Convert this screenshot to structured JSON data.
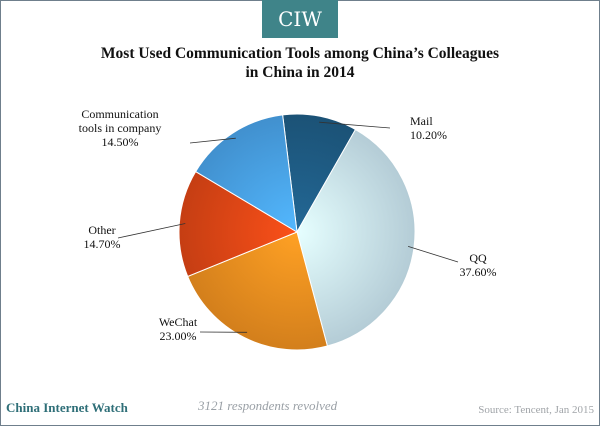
{
  "brand": {
    "logo": "CIW",
    "name": "China Internet Watch"
  },
  "footer": {
    "note": "3121 respondents revolved",
    "source": "Source: Tencent, Jan 2015"
  },
  "colors": {
    "accent": "#3f8489"
  },
  "chart_data": {
    "type": "pie",
    "title_lines": [
      "Most Used Communication  Tools  among China’s Colleagues",
      "in China in 2014"
    ],
    "slices": [
      {
        "label_lines": [
          "Mail"
        ],
        "value": 10.2,
        "value_label": "10.20%",
        "color": "#1f5d86"
      },
      {
        "label_lines": [
          "QQ"
        ],
        "value": 37.6,
        "value_label": "37.60%",
        "color": "#cde8f3"
      },
      {
        "label_lines": [
          "WeChat"
        ],
        "value": 23.0,
        "value_label": "23.00%",
        "color": "#f09020"
      },
      {
        "label_lines": [
          "Other"
        ],
        "value": 14.7,
        "value_label": "14.70%",
        "color": "#e04716"
      },
      {
        "label_lines": [
          "Communication",
          "tools in company"
        ],
        "value": 14.5,
        "value_label": "14.50%",
        "color": "#4aa4ea"
      }
    ]
  }
}
